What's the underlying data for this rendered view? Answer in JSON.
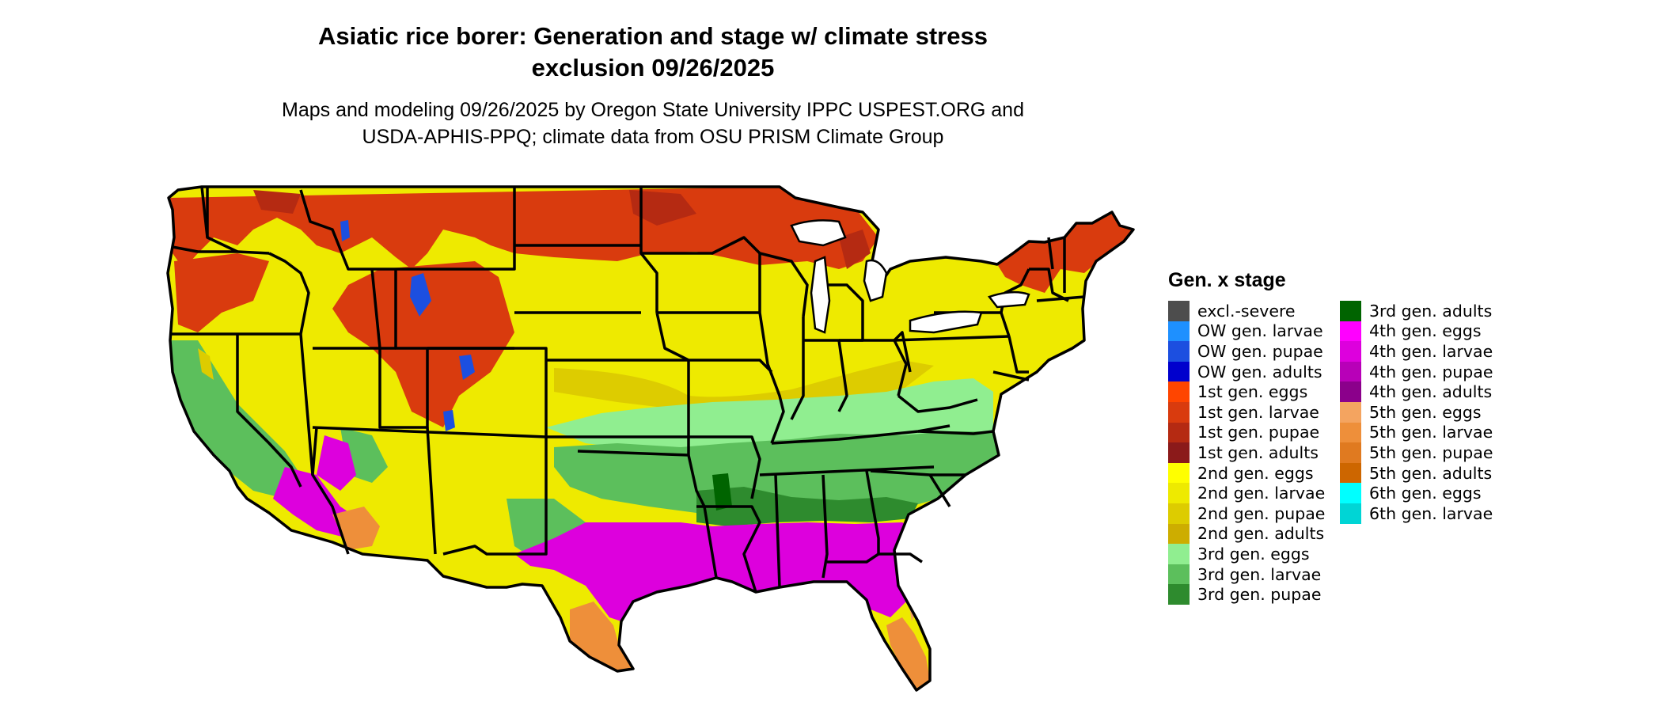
{
  "title": {
    "line1": "Asiatic rice borer: Generation and stage w/ climate stress",
    "line2": "exclusion 09/26/2025"
  },
  "subtitle": {
    "line1": "Maps and modeling 09/26/2025 by Oregon State University IPPC USPEST.ORG and",
    "line2": "USDA-APHIS-PPQ; climate data from OSU PRISM Climate Group"
  },
  "legend": {
    "title": "Gen. x stage",
    "items": [
      {
        "label": "excl.-severe",
        "color": "#4d4d4d"
      },
      {
        "label": "OW gen. larvae",
        "color": "#1e90ff"
      },
      {
        "label": "OW gen. pupae",
        "color": "#1c4fe0"
      },
      {
        "label": "OW gen. adults",
        "color": "#0000cd"
      },
      {
        "label": "1st gen. eggs",
        "color": "#ff4500"
      },
      {
        "label": "1st gen. larvae",
        "color": "#d93b0e"
      },
      {
        "label": "1st gen. pupae",
        "color": "#b52a12"
      },
      {
        "label": "1st gen. adults",
        "color": "#8b1a1a"
      },
      {
        "label": "2nd gen. eggs",
        "color": "#ffff00"
      },
      {
        "label": "2nd gen. larvae",
        "color": "#eeea00"
      },
      {
        "label": "2nd gen. pupae",
        "color": "#ddcc00"
      },
      {
        "label": "2nd gen. adults",
        "color": "#cdad00"
      },
      {
        "label": "3rd gen. eggs",
        "color": "#90ee90"
      },
      {
        "label": "3rd gen. larvae",
        "color": "#5cbf5c"
      },
      {
        "label": "3rd gen. pupae",
        "color": "#2e8b2e"
      },
      {
        "label": "3rd gen. adults",
        "color": "#006400"
      },
      {
        "label": "4th gen. eggs",
        "color": "#ff00ff"
      },
      {
        "label": "4th gen. larvae",
        "color": "#dd00dd"
      },
      {
        "label": "4th gen. pupae",
        "color": "#b800b8"
      },
      {
        "label": "4th gen. adults",
        "color": "#8b008b"
      },
      {
        "label": "5th gen. eggs",
        "color": "#f4a460"
      },
      {
        "label": "5th gen. larvae",
        "color": "#ee8f3a"
      },
      {
        "label": "5th gen. pupae",
        "color": "#e07a20"
      },
      {
        "label": "5th gen. adults",
        "color": "#cd6600"
      },
      {
        "label": "6th gen. eggs",
        "color": "#00ffff"
      },
      {
        "label": "6th gen. larvae",
        "color": "#00d5d5"
      }
    ]
  }
}
